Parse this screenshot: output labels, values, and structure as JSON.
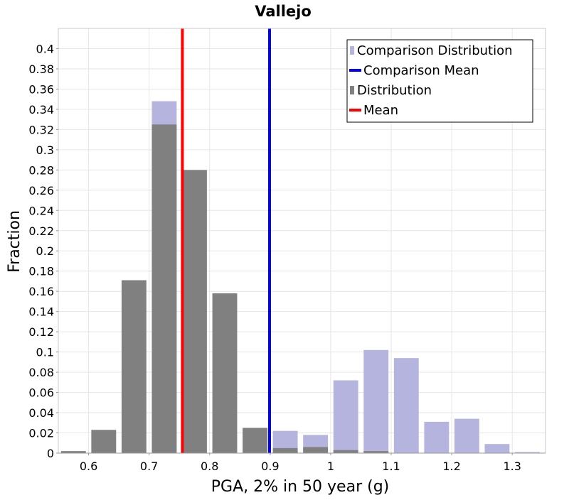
{
  "chart_data": {
    "type": "bar",
    "title": "Vallejo",
    "xlabel": "PGA, 2% in 50 year (g)",
    "ylabel": "Fraction",
    "xlim": [
      0.55,
      1.355
    ],
    "ylim": [
      0,
      0.42
    ],
    "x_ticks": [
      "0.6",
      "0.7",
      "0.8",
      "0.9",
      "1",
      "1.1",
      "1.2",
      "1.3"
    ],
    "y_ticks": [
      "0",
      "0.02",
      "0.04",
      "0.06",
      "0.08",
      "0.1",
      "0.12",
      "0.14",
      "0.16",
      "0.18",
      "0.2",
      "0.22",
      "0.24",
      "0.26",
      "0.28",
      "0.3",
      "0.32",
      "0.34",
      "0.36",
      "0.38",
      "0.4"
    ],
    "bin_width": 0.05,
    "grid": true,
    "legend_position": "top-right",
    "series": [
      {
        "name": "Comparison Distribution",
        "color": "#b4b4de",
        "x": [
          0.575,
          0.625,
          0.675,
          0.725,
          0.775,
          0.825,
          0.875,
          0.925,
          0.975,
          1.025,
          1.075,
          1.125,
          1.175,
          1.225,
          1.275,
          1.325
        ],
        "values": [
          0.0,
          0.0,
          0.0,
          0.348,
          0.0,
          0.0,
          0.0,
          0.022,
          0.018,
          0.072,
          0.102,
          0.094,
          0.031,
          0.034,
          0.009,
          0.001
        ]
      },
      {
        "name": "Distribution",
        "color": "#808080",
        "x": [
          0.575,
          0.625,
          0.675,
          0.725,
          0.775,
          0.825,
          0.875,
          0.925,
          0.975,
          1.025,
          1.075,
          1.125,
          1.175,
          1.225,
          1.275,
          1.325
        ],
        "values": [
          0.002,
          0.023,
          0.171,
          0.325,
          0.28,
          0.158,
          0.025,
          0.005,
          0.006,
          0.003,
          0.002,
          0.0,
          0.0,
          0.0,
          0.0,
          0.0
        ]
      }
    ],
    "lines": [
      {
        "name": "Comparison Mean",
        "color": "#0000ff",
        "x": 0.899
      },
      {
        "name": "Mean",
        "color": "#ff0000",
        "x": 0.755
      }
    ],
    "legend": [
      {
        "label": "Comparison Distribution",
        "color": "#b4b4de",
        "kind": "box"
      },
      {
        "label": "Comparison Mean",
        "color": "#0000ff",
        "kind": "line"
      },
      {
        "label": "Distribution",
        "color": "#808080",
        "kind": "box"
      },
      {
        "label": "Mean",
        "color": "#ff0000",
        "kind": "line"
      }
    ]
  }
}
